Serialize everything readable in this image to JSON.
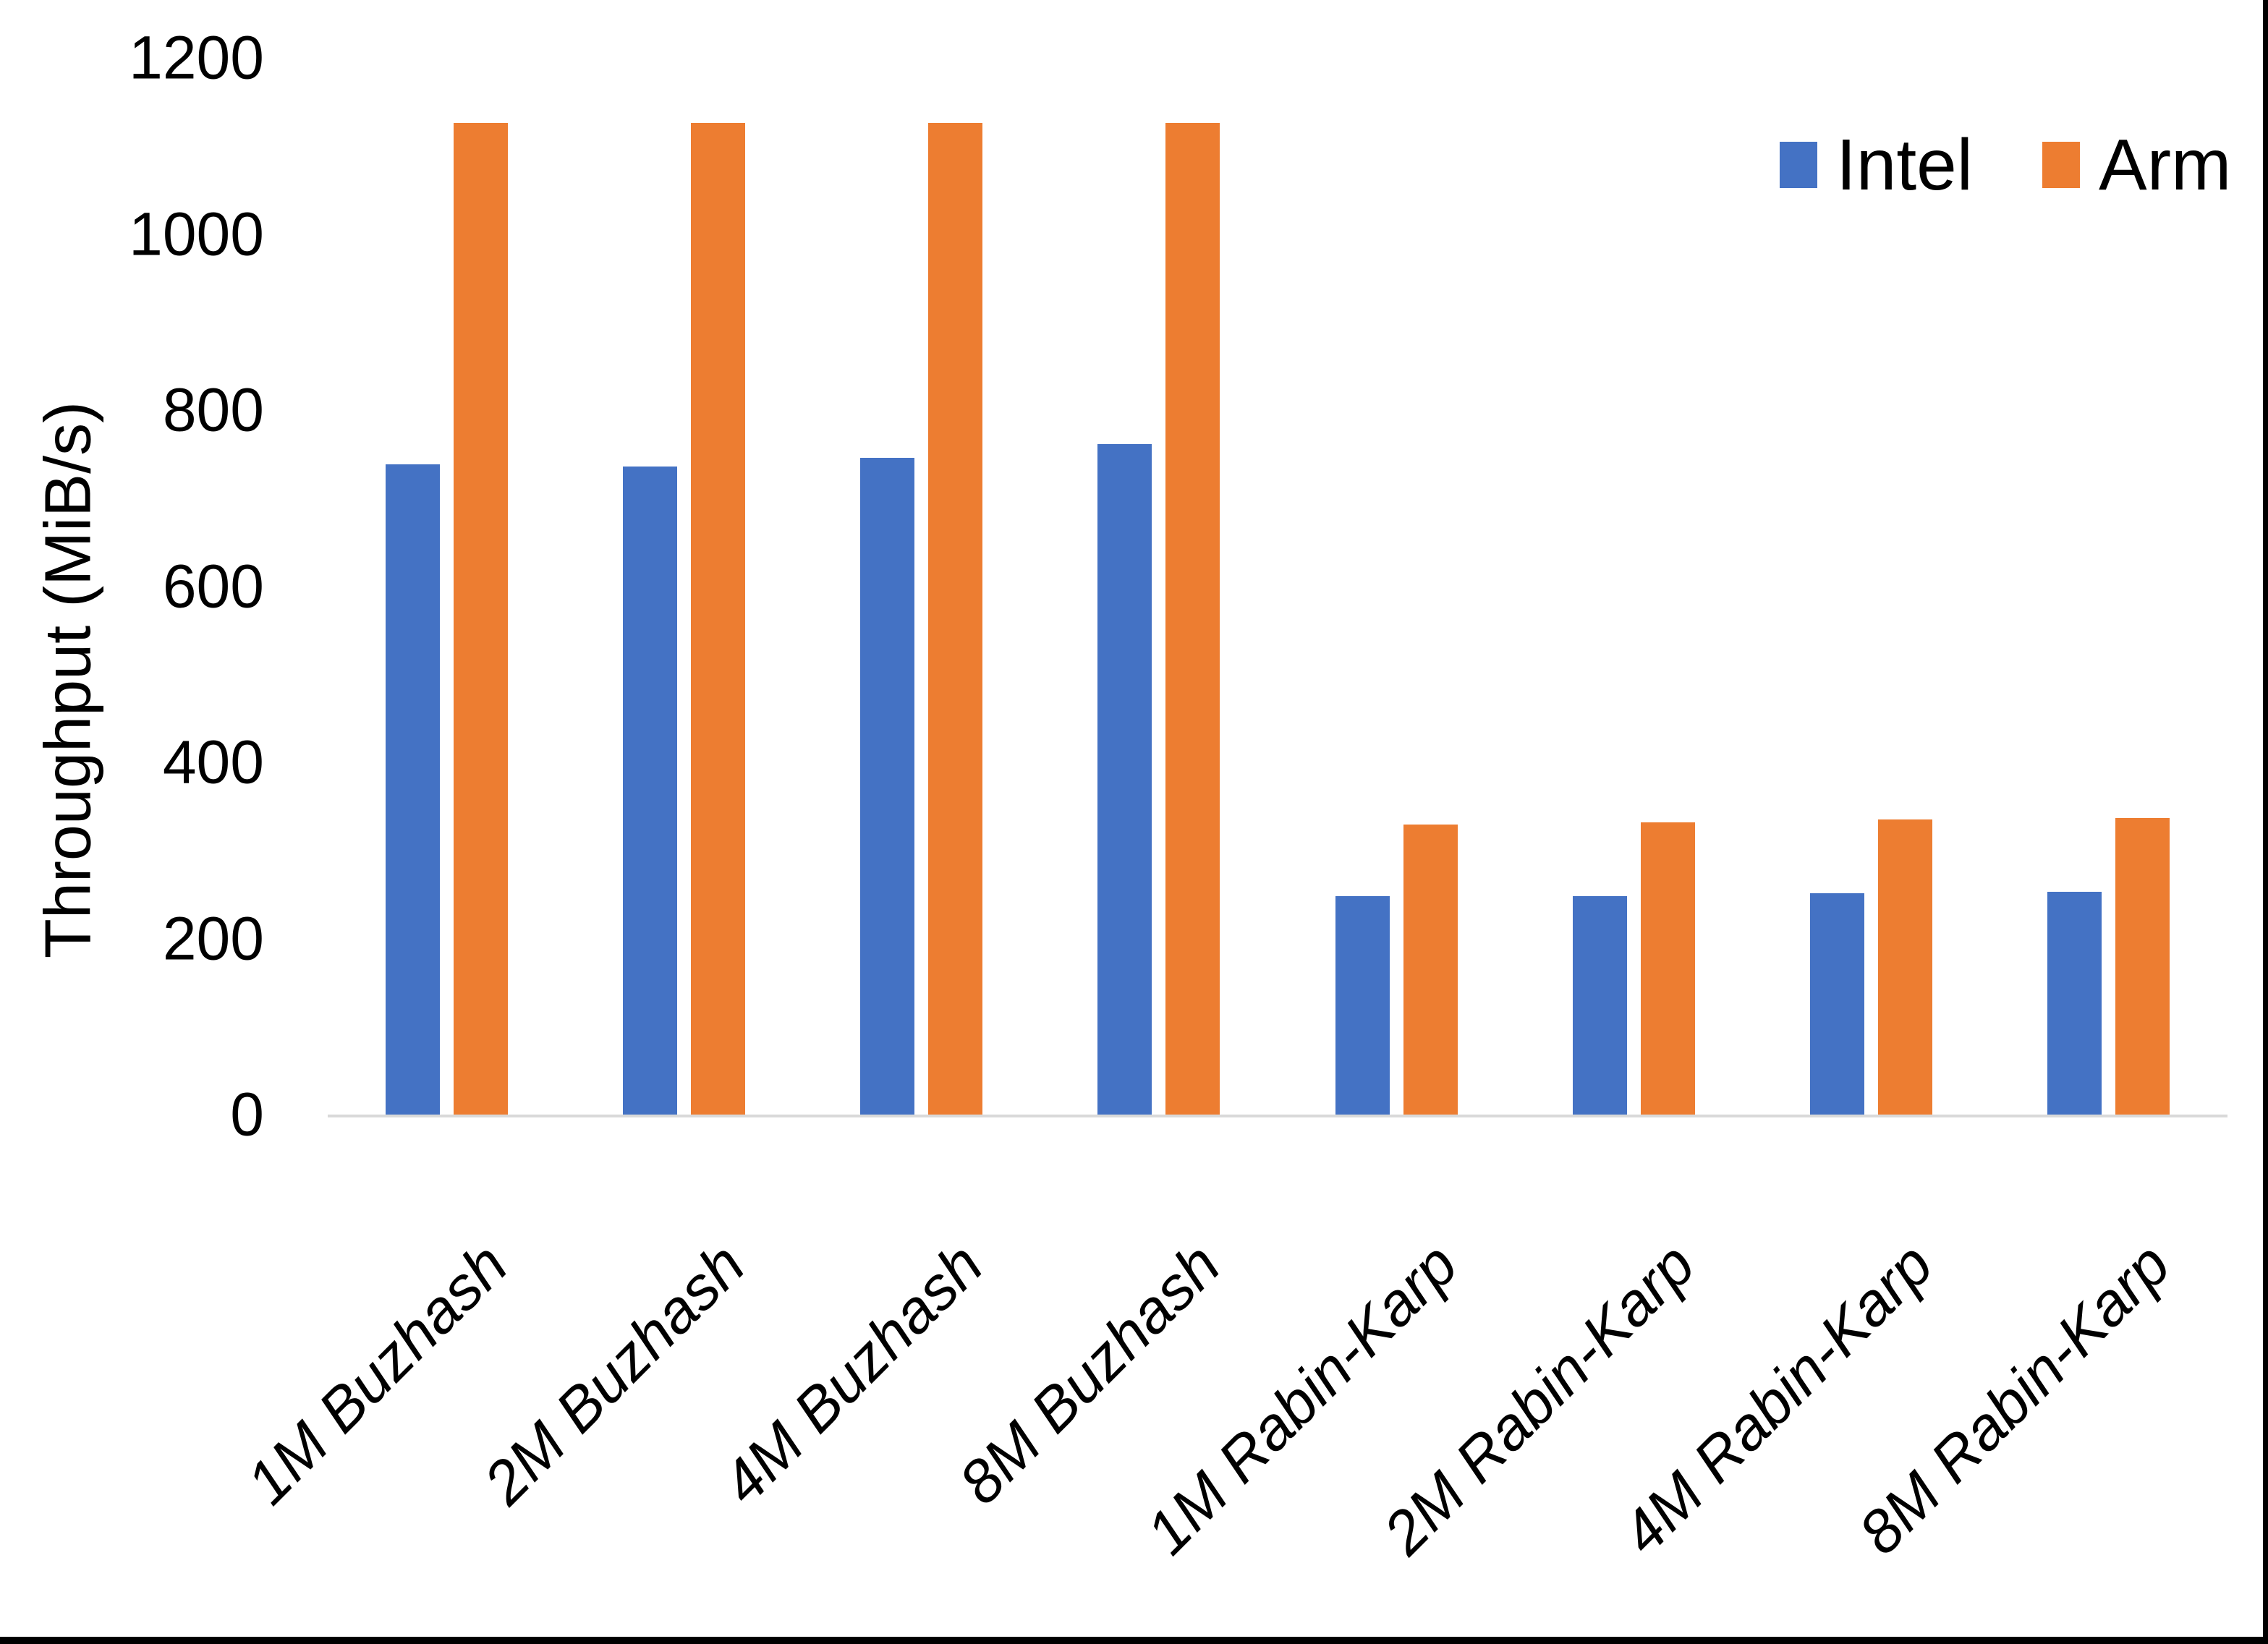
{
  "chart_data": {
    "type": "bar",
    "title": "",
    "ylabel": "Throughput (MiB/s)",
    "xlabel": "",
    "ylim": [
      0,
      1200
    ],
    "yticks": [
      0,
      200,
      400,
      600,
      800,
      1000,
      1200
    ],
    "grid": false,
    "legend_position": "top-right",
    "categories": [
      "1M Buzhash",
      "2M Buzhash",
      "4M Buzhash",
      "8M Buzhash",
      "1M Rabin-Karp",
      "2M Rabin-Karp",
      "4M Rabin-Karp",
      "8M Rabin-Karp"
    ],
    "series": [
      {
        "name": "Intel",
        "color": "#4472C4",
        "values": [
          738,
          736,
          746,
          761,
          248,
          248,
          251,
          253
        ]
      },
      {
        "name": "Arm",
        "color": "#ED7D31",
        "values": [
          1126,
          1126,
          1126,
          1126,
          329,
          332,
          335,
          337
        ]
      }
    ]
  },
  "colors": {
    "intel": "#4472C4",
    "arm": "#ED7D31",
    "axis_line": "#d9d9d9",
    "text": "#000000",
    "background": "#ffffff",
    "frame_border": "#000000"
  }
}
